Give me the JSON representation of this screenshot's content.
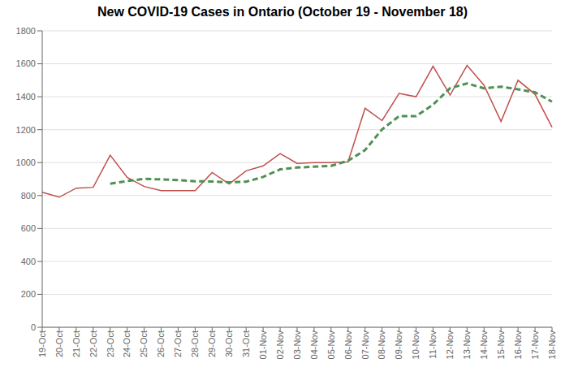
{
  "chart_data": {
    "type": "line",
    "title": "New COVID-19 Cases in Ontario (October 19 - November 18)",
    "categories": [
      "19-Oct",
      "20-Oct",
      "21-Oct",
      "22-Oct",
      "23-Oct",
      "24-Oct",
      "25-Oct",
      "26-Oct",
      "27-Oct",
      "28-Oct",
      "29-Oct",
      "30-Oct",
      "31-Oct",
      "01-Nov",
      "02-Nov",
      "03-Nov",
      "04-Nov",
      "05-Nov",
      "06-Nov",
      "07-Nov",
      "08-Nov",
      "09-Nov",
      "10-Nov",
      "11-Nov",
      "12-Nov",
      "13-Nov",
      "14-Nov",
      "15-Nov",
      "16-Nov",
      "17-Nov",
      "18-Nov"
    ],
    "series": [
      {
        "color": "#c0504d",
        "line_style": "solid",
        "values": [
          820,
          790,
          845,
          850,
          1045,
          910,
          855,
          830,
          830,
          830,
          940,
          870,
          950,
          980,
          1055,
          995,
          1000,
          1000,
          1005,
          1330,
          1255,
          1420,
          1400,
          1585,
          1410,
          1590,
          1470,
          1250,
          1500,
          1415,
          1215
        ]
      },
      {
        "color": "#4f9153",
        "line_style": "dashed",
        "values": [
          null,
          null,
          null,
          null,
          872,
          888,
          901,
          898,
          894,
          887,
          885,
          880,
          884,
          913,
          959,
          970,
          975,
          980,
          1011,
          1076,
          1202,
          1282,
          1282,
          1352,
          1452,
          1481,
          1451,
          1461,
          1445,
          1427,
          1370
        ]
      }
    ],
    "ylim": [
      0,
      1800
    ],
    "yticks": [
      0,
      200,
      400,
      600,
      800,
      1000,
      1200,
      1400,
      1600,
      1800
    ],
    "grid": true
  }
}
